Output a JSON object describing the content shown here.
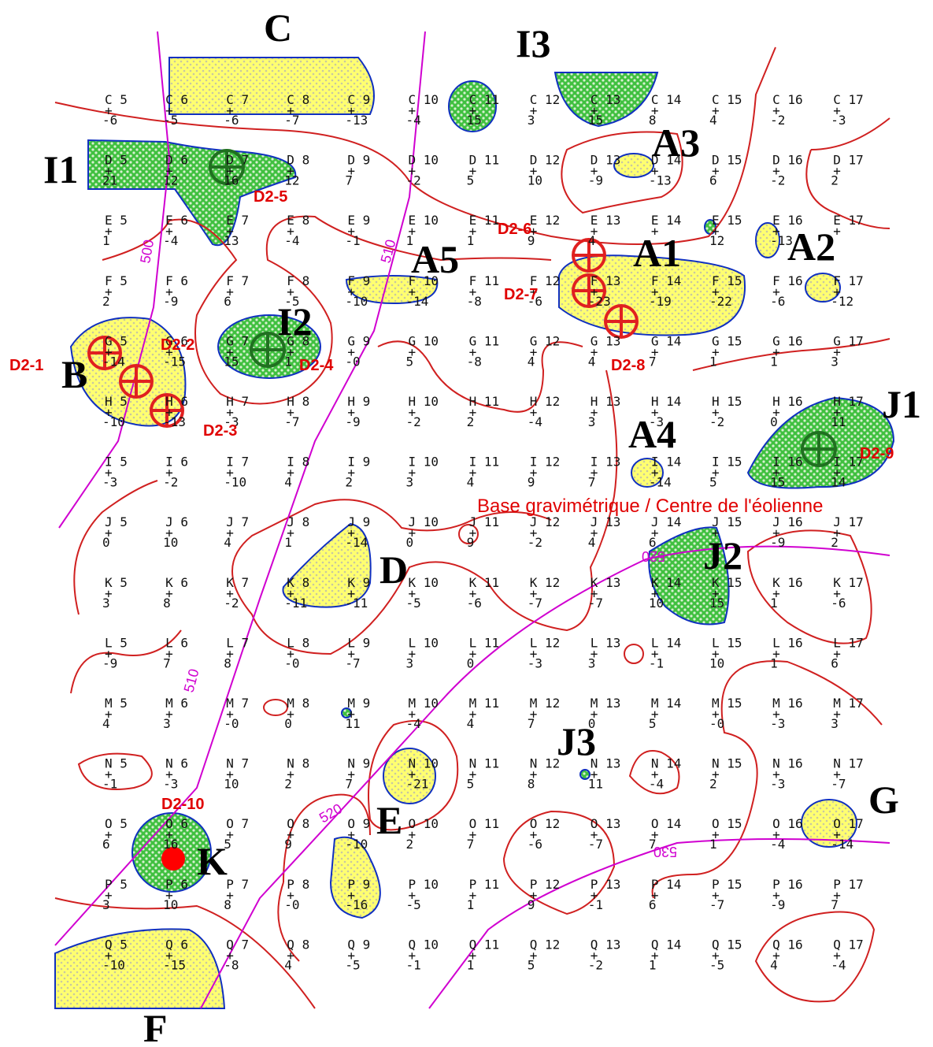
{
  "zones": [
    "C",
    "I3",
    "I1",
    "A3",
    "A1",
    "A2",
    "A5",
    "I2",
    "B",
    "J1",
    "A4",
    "D",
    "J2",
    "J3",
    "G",
    "E",
    "K",
    "F"
  ],
  "drills": [
    "D2-1",
    "D2-2",
    "D2-3",
    "D2-4",
    "D2-5",
    "D2-6",
    "D2-7",
    "D2-8",
    "D2-9",
    "D2-10"
  ],
  "base_label": "Base gravimétrique  /  Centre de l'éolienne",
  "contour_labels": [
    "500",
    "510",
    "510",
    "520",
    "520",
    "530"
  ],
  "grid": {
    "rows": [
      {
        "row": "C",
        "points": [
          [
            "C 5",
            "-6"
          ],
          [
            "C 6",
            "-5"
          ],
          [
            "C 7",
            "-6"
          ],
          [
            "C 8",
            "-7"
          ],
          [
            "C 9",
            "-13"
          ],
          [
            "C 10",
            "-4"
          ],
          [
            "C 11",
            "15"
          ],
          [
            "C 12",
            "3"
          ],
          [
            "C 13",
            "15"
          ],
          [
            "C 14",
            "8"
          ],
          [
            "C 15",
            "4"
          ],
          [
            "C 16",
            "-2"
          ],
          [
            "C 17",
            "-3"
          ]
        ]
      },
      {
        "row": "D",
        "points": [
          [
            "D 5",
            "21"
          ],
          [
            "D 6",
            "12"
          ],
          [
            "D 7",
            "16"
          ],
          [
            "D 8",
            "12"
          ],
          [
            "D 9",
            "7"
          ],
          [
            "D 10",
            "-2"
          ],
          [
            "D 11",
            "5"
          ],
          [
            "D 12",
            "10"
          ],
          [
            "D 13",
            "-9"
          ],
          [
            "D 14",
            "-13"
          ],
          [
            "D 15",
            "6"
          ],
          [
            "D 16",
            "-2"
          ],
          [
            "D 17",
            "2"
          ]
        ]
      },
      {
        "row": "E",
        "points": [
          [
            "E 5",
            "1"
          ],
          [
            "E 6",
            "-4"
          ],
          [
            "E 7",
            "13"
          ],
          [
            "E 8",
            "-4"
          ],
          [
            "E 9",
            "-1"
          ],
          [
            "E 10",
            "1"
          ],
          [
            "E 11",
            "1"
          ],
          [
            "E 12",
            "9"
          ],
          [
            "E 13",
            "4"
          ],
          [
            "E 14",
            null
          ],
          [
            "E 15",
            "12"
          ],
          [
            "E 16",
            "-13"
          ],
          [
            "E 17",
            null
          ]
        ]
      },
      {
        "row": "F",
        "points": [
          [
            "F 5",
            "2"
          ],
          [
            "F 6",
            "-9"
          ],
          [
            "F 7",
            "6"
          ],
          [
            "F 8",
            "-5"
          ],
          [
            "F 9",
            "-10"
          ],
          [
            "F 10",
            "-14"
          ],
          [
            "F 11",
            "-8"
          ],
          [
            "F 12",
            "-6"
          ],
          [
            "F 13",
            "-23"
          ],
          [
            "F 14",
            "-19"
          ],
          [
            "F 15",
            "-22"
          ],
          [
            "F 16",
            "-6"
          ],
          [
            "F 17",
            "-12"
          ]
        ]
      },
      {
        "row": "G",
        "points": [
          [
            "G 5",
            "-14"
          ],
          [
            "G 6",
            "-15"
          ],
          [
            "G 7",
            "15"
          ],
          [
            "G 8",
            "1"
          ],
          [
            "G 9",
            "-0"
          ],
          [
            "G 10",
            "5"
          ],
          [
            "G 11",
            "-8"
          ],
          [
            "G 12",
            "4"
          ],
          [
            "G 13",
            "4"
          ],
          [
            "G 14",
            "7"
          ],
          [
            "G 15",
            "1"
          ],
          [
            "G 16",
            "1"
          ],
          [
            "G 17",
            "3"
          ]
        ]
      },
      {
        "row": "H",
        "points": [
          [
            "H 5",
            "-10"
          ],
          [
            "H 6",
            "-13"
          ],
          [
            "H 7",
            "-3"
          ],
          [
            "H 8",
            "-7"
          ],
          [
            "H 9",
            "-9"
          ],
          [
            "H 10",
            "-2"
          ],
          [
            "H 11",
            "2"
          ],
          [
            "H 12",
            "-4"
          ],
          [
            "H 13",
            "3"
          ],
          [
            "H 14",
            "-3"
          ],
          [
            "H 15",
            "-2"
          ],
          [
            "H 16",
            "0"
          ],
          [
            "H 17",
            "11"
          ]
        ]
      },
      {
        "row": "I",
        "points": [
          [
            "I 5",
            "-3"
          ],
          [
            "I 6",
            "-2"
          ],
          [
            "I 7",
            "-10"
          ],
          [
            "I 8",
            "4"
          ],
          [
            "I 9",
            "2"
          ],
          [
            "I 10",
            "3"
          ],
          [
            "I 11",
            "4"
          ],
          [
            "I 12",
            "9"
          ],
          [
            "I 13",
            "7"
          ],
          [
            "I 14",
            "-14"
          ],
          [
            "I 15",
            "5"
          ],
          [
            "I 16",
            "15"
          ],
          [
            "I 17",
            "14"
          ]
        ]
      },
      {
        "row": "J",
        "points": [
          [
            "J 5",
            "0"
          ],
          [
            "J 6",
            "10"
          ],
          [
            "J 7",
            "4"
          ],
          [
            "J 8",
            "1"
          ],
          [
            "J 9",
            "-14"
          ],
          [
            "J 10",
            "0"
          ],
          [
            "J 11",
            "9"
          ],
          [
            "J 12",
            "-2"
          ],
          [
            "J 13",
            "4"
          ],
          [
            "J 14",
            "6"
          ],
          [
            "J 15",
            null
          ],
          [
            "J 16",
            "-9"
          ],
          [
            "J 17",
            "2"
          ]
        ]
      },
      {
        "row": "K",
        "points": [
          [
            "K 5",
            "3"
          ],
          [
            "K 6",
            "8"
          ],
          [
            "K 7",
            "-2"
          ],
          [
            "K 8",
            "-11"
          ],
          [
            "K 9",
            "-11"
          ],
          [
            "K 10",
            "-5"
          ],
          [
            "K 11",
            "-6"
          ],
          [
            "K 12",
            "-7"
          ],
          [
            "K 13",
            "-7"
          ],
          [
            "K 14",
            "10"
          ],
          [
            "K 15",
            "15"
          ],
          [
            "K 16",
            "1"
          ],
          [
            "K 17",
            "-6"
          ]
        ]
      },
      {
        "row": "L",
        "points": [
          [
            "L 5",
            "-9"
          ],
          [
            "L 6",
            "7"
          ],
          [
            "L 7",
            "8"
          ],
          [
            "L 8",
            "-0"
          ],
          [
            "L 9",
            "-7"
          ],
          [
            "L 10",
            "3"
          ],
          [
            "L 11",
            "0"
          ],
          [
            "L 12",
            "-3"
          ],
          [
            "L 13",
            "3"
          ],
          [
            "L 14",
            "-1"
          ],
          [
            "L 15",
            "10"
          ],
          [
            "L 16",
            "1"
          ],
          [
            "L 17",
            "6"
          ]
        ]
      },
      {
        "row": "M",
        "points": [
          [
            "M 5",
            "4"
          ],
          [
            "M 6",
            "3"
          ],
          [
            "M 7",
            "-0"
          ],
          [
            "M 8",
            "0"
          ],
          [
            "M 9",
            "11"
          ],
          [
            "M 10",
            "-4"
          ],
          [
            "M 11",
            "4"
          ],
          [
            "M 12",
            "7"
          ],
          [
            "M 13",
            "0"
          ],
          [
            "M 14",
            "5"
          ],
          [
            "M 15",
            "-0"
          ],
          [
            "M 16",
            "-3"
          ],
          [
            "M 17",
            "3"
          ]
        ]
      },
      {
        "row": "N",
        "points": [
          [
            "N 5",
            "-1"
          ],
          [
            "N 6",
            "-3"
          ],
          [
            "N 7",
            "10"
          ],
          [
            "N 8",
            "2"
          ],
          [
            "N 9",
            "7"
          ],
          [
            "N 10",
            "-21"
          ],
          [
            "N 11",
            "5"
          ],
          [
            "N 12",
            "8"
          ],
          [
            "N 13",
            "11"
          ],
          [
            "N 14",
            "-4"
          ],
          [
            "N 15",
            "2"
          ],
          [
            "N 16",
            "-3"
          ],
          [
            "N 17",
            "-7"
          ]
        ]
      },
      {
        "row": "O",
        "points": [
          [
            "O 5",
            "6"
          ],
          [
            "O 6",
            "16"
          ],
          [
            "O 7",
            "5"
          ],
          [
            "O 8",
            "9"
          ],
          [
            "O 9",
            "-10"
          ],
          [
            "O 10",
            "2"
          ],
          [
            "O 11",
            "7"
          ],
          [
            "O 12",
            "-6"
          ],
          [
            "O 13",
            "-7"
          ],
          [
            "O 14",
            "7"
          ],
          [
            "O 15",
            "1"
          ],
          [
            "O 16",
            "-4"
          ],
          [
            "O 17",
            "-14"
          ]
        ]
      },
      {
        "row": "P",
        "points": [
          [
            "P 5",
            "3"
          ],
          [
            "P 6",
            "10"
          ],
          [
            "P 7",
            "8"
          ],
          [
            "P 8",
            "-0"
          ],
          [
            "P 9",
            "-16"
          ],
          [
            "P 10",
            "-5"
          ],
          [
            "P 11",
            "1"
          ],
          [
            "P 12",
            "9"
          ],
          [
            "P 13",
            "-1"
          ],
          [
            "P 14",
            "6"
          ],
          [
            "P 15",
            "-7"
          ],
          [
            "P 16",
            "-9"
          ],
          [
            "P 17",
            "7"
          ]
        ]
      },
      {
        "row": "Q",
        "points": [
          [
            "Q 5",
            "-10"
          ],
          [
            "Q 6",
            "-15"
          ],
          [
            "Q 7",
            "-8"
          ],
          [
            "Q 8",
            "4"
          ],
          [
            "Q 9",
            "-5"
          ],
          [
            "Q 10",
            "-1"
          ],
          [
            "Q 11",
            "1"
          ],
          [
            "Q 12",
            "5"
          ],
          [
            "Q 13",
            "-2"
          ],
          [
            "Q 14",
            "1"
          ],
          [
            "Q 15",
            "-5"
          ],
          [
            "Q 16",
            "4"
          ],
          [
            "Q 17",
            "-4"
          ]
        ]
      }
    ]
  }
}
